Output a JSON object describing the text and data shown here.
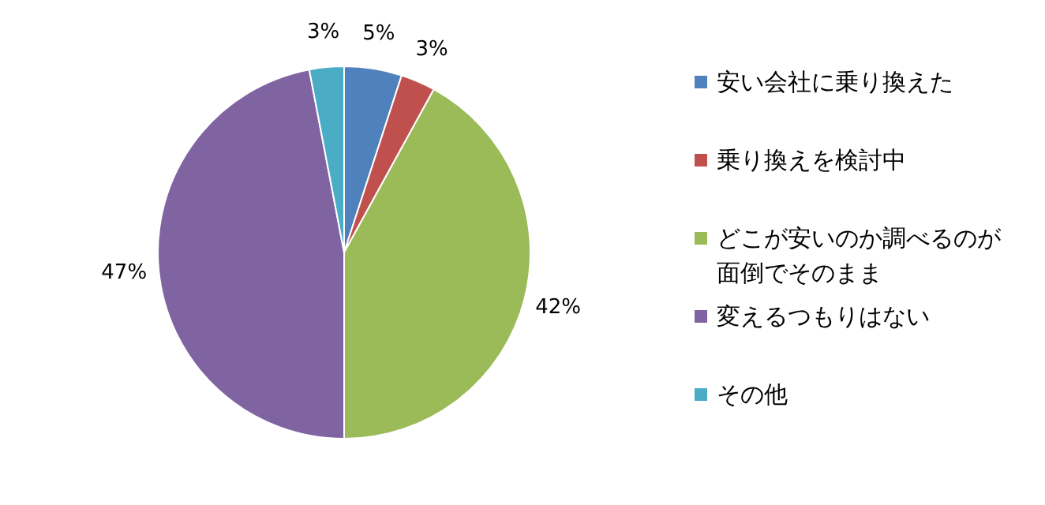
{
  "chart_data": {
    "type": "pie",
    "categories": [
      "安い会社に乗り換えた",
      "乗り換えを検討中",
      "どこが安いのか調べるのが面倒でそのまま",
      "変えるつもりはない",
      "その他"
    ],
    "values": [
      5,
      3,
      42,
      47,
      3
    ],
    "colors": [
      "#4f81bd",
      "#c0504d",
      "#9bbb59",
      "#8064a2",
      "#4bacc6"
    ],
    "value_labels": [
      "5%",
      "3%",
      "42%",
      "47%",
      "3%"
    ],
    "legend": "right"
  }
}
